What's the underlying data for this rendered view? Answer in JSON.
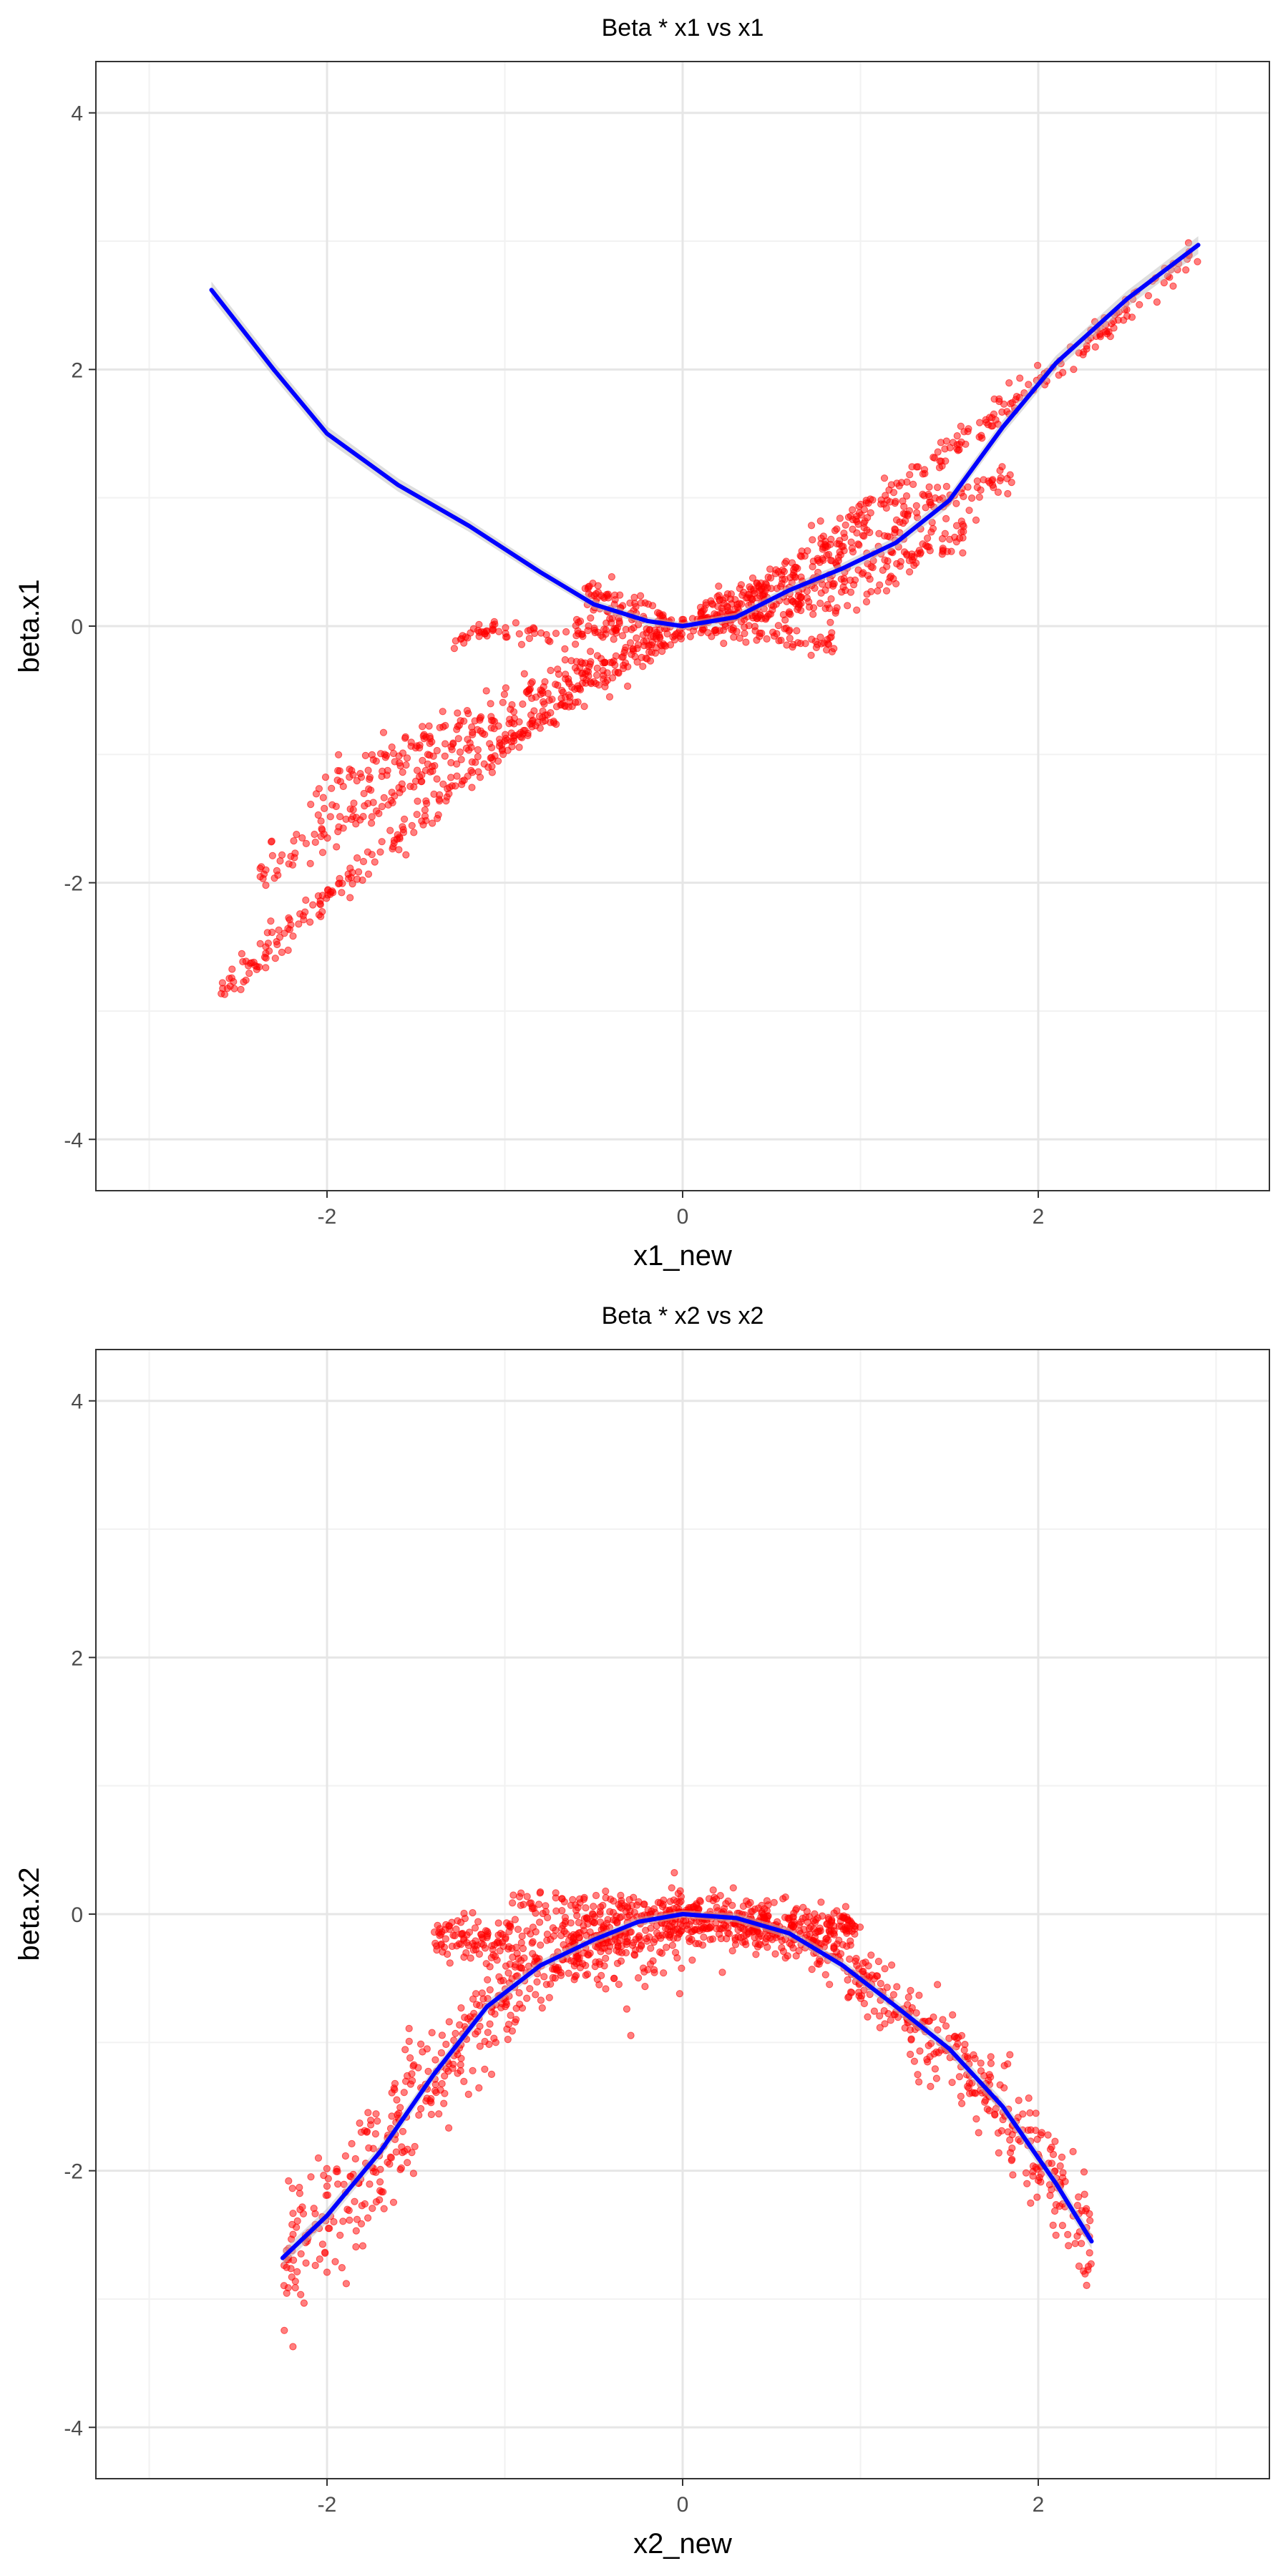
{
  "chart_data": [
    {
      "type": "scatter",
      "title": "Beta * x1 vs x1",
      "xlabel": "x1_new",
      "ylabel": "beta.x1",
      "xlim": [
        -3.3,
        3.3
      ],
      "ylim": [
        -4.4,
        4.4
      ],
      "xticks": [
        -2,
        0,
        2
      ],
      "yticks": [
        -4,
        -2,
        0,
        2,
        4
      ],
      "x_tick_labels": [
        "-2",
        "0",
        "2"
      ],
      "y_tick_labels": [
        "-4",
        "-2",
        "0",
        "2",
        "4"
      ],
      "grid": true,
      "colors": {
        "points": "#ff0000",
        "smooth": "#0000ff",
        "band": "#bdbdbd"
      },
      "point_structures": [
        {
          "type": "curve",
          "x_range": [
            -2.6,
            0.0
          ],
          "slope": -0.95,
          "power": 1.15,
          "n": 260,
          "noise": 0.06
        },
        {
          "type": "curve",
          "x_range": [
            -2.4,
            -0.1
          ],
          "slope": -0.8,
          "power": 1.0,
          "n": 190,
          "noise": 0.08
        },
        {
          "type": "curve",
          "x_range": [
            -2.1,
            -0.1
          ],
          "slope": -0.63,
          "power": 1.0,
          "n": 170,
          "noise": 0.09
        },
        {
          "type": "curve",
          "x_range": [
            -1.3,
            -0.1
          ],
          "slope": -0.05,
          "power": 1.0,
          "n": 90,
          "noise": 0.05
        },
        {
          "type": "curve",
          "x_range": [
            -0.55,
            -0.05
          ],
          "slope": 0.45,
          "power": 1.0,
          "n": 70,
          "noise": 0.07
        },
        {
          "type": "curve",
          "x_range": [
            0.0,
            2.9
          ],
          "slope": 0.86,
          "power": 1.15,
          "n": 260,
          "noise": 0.06
        },
        {
          "type": "curve",
          "x_range": [
            0.1,
            1.85
          ],
          "slope": 0.65,
          "power": 1.0,
          "n": 170,
          "noise": 0.08
        },
        {
          "type": "curve",
          "x_range": [
            0.1,
            1.6
          ],
          "slope": 0.45,
          "power": 1.0,
          "n": 150,
          "noise": 0.08
        },
        {
          "type": "curve",
          "x_range": [
            0.1,
            1.2
          ],
          "slope": 0.25,
          "power": 1.0,
          "n": 90,
          "noise": 0.07
        },
        {
          "type": "curve",
          "x_range": [
            0.05,
            0.9
          ],
          "slope": -0.15,
          "power": 1.0,
          "n": 60,
          "noise": 0.05
        }
      ],
      "smooth": {
        "x": [
          -2.65,
          -2.3,
          -2.0,
          -1.6,
          -1.2,
          -0.8,
          -0.5,
          -0.2,
          0.0,
          0.3,
          0.6,
          0.9,
          1.2,
          1.5,
          1.8,
          2.1,
          2.5,
          2.9
        ],
        "y": [
          2.62,
          2.0,
          1.5,
          1.1,
          0.78,
          0.42,
          0.17,
          0.04,
          0.0,
          0.07,
          0.28,
          0.45,
          0.65,
          0.98,
          1.55,
          2.05,
          2.55,
          2.97
        ]
      }
    },
    {
      "type": "scatter",
      "title": "Beta * x2 vs x2",
      "xlabel": "x2_new",
      "ylabel": "beta.x2",
      "xlim": [
        -3.3,
        3.3
      ],
      "ylim": [
        -4.4,
        4.4
      ],
      "xticks": [
        -2,
        0,
        2
      ],
      "yticks": [
        -4,
        -2,
        0,
        2,
        4
      ],
      "x_tick_labels": [
        "-2",
        "0",
        "2"
      ],
      "y_tick_labels": [
        "-4",
        "-2",
        "0",
        "2",
        "4"
      ],
      "grid": true,
      "colors": {
        "points": "#ff0000",
        "smooth": "#0000ff",
        "band": "#bdbdbd"
      },
      "point_structures": [
        {
          "type": "band",
          "x_range": [
            -2.25,
            0.0
          ],
          "n": 520,
          "width": 0.25
        },
        {
          "type": "blob",
          "x_range": [
            -1.4,
            0.0
          ],
          "y_center": -0.2,
          "spread": 0.22,
          "n": 260
        },
        {
          "type": "curve",
          "x_range": [
            -1.0,
            0.0
          ],
          "slope": 0.12,
          "power": 1.0,
          "n": 60,
          "noise": 0.05
        },
        {
          "type": "band",
          "x_range": [
            0.0,
            2.3
          ],
          "n": 520,
          "width": 0.18
        },
        {
          "type": "blob",
          "x_range": [
            0.0,
            1.0
          ],
          "y_center": -0.1,
          "spread": 0.12,
          "n": 180
        }
      ],
      "smooth": {
        "x": [
          -2.25,
          -2.0,
          -1.7,
          -1.4,
          -1.1,
          -0.8,
          -0.5,
          -0.25,
          0.0,
          0.3,
          0.6,
          0.9,
          1.2,
          1.5,
          1.8,
          2.1,
          2.3
        ],
        "y": [
          -2.68,
          -2.35,
          -1.85,
          -1.25,
          -0.72,
          -0.4,
          -0.2,
          -0.06,
          0.0,
          -0.03,
          -0.15,
          -0.4,
          -0.72,
          -1.05,
          -1.5,
          -2.1,
          -2.55
        ]
      }
    }
  ]
}
